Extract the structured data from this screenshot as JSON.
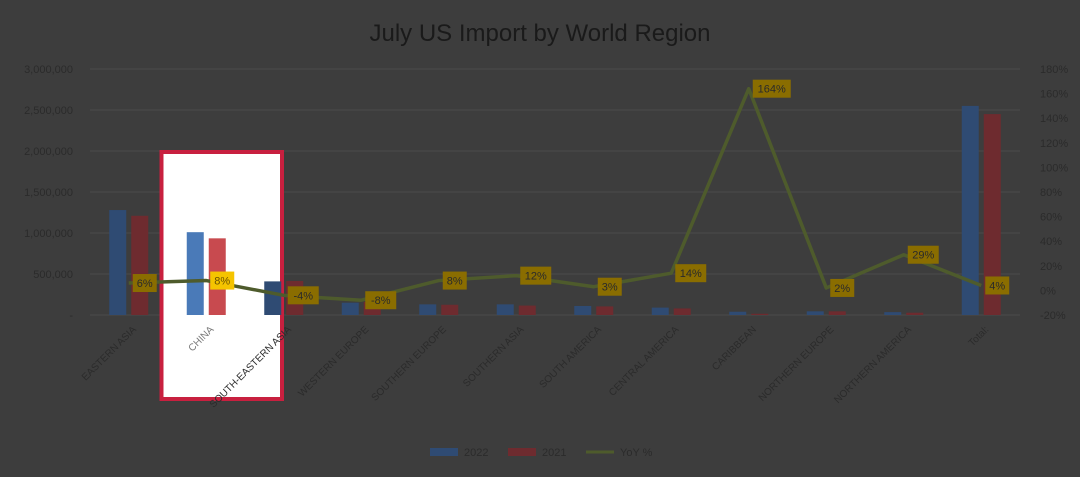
{
  "chart_data": {
    "type": "bar",
    "title": "July US Import by World Region",
    "categories": [
      "EASTERN ASIA",
      "CHINA",
      "SOUTH-EASTERN ASIA",
      "WESTERN EUROPE",
      "SOUTHERN EUROPE",
      "SOUTHERN ASIA",
      "SOUTH AMERICA",
      "CENTRAL AMERICA",
      "CARIBBEAN",
      "NORTHERN EUROPE",
      "NORTHERN AMERICA",
      "Total:"
    ],
    "series": [
      {
        "name": "2022",
        "type": "bar",
        "color": "#2f4b73",
        "values": [
          1280000,
          1010000,
          410000,
          150000,
          130000,
          130000,
          110000,
          90000,
          40000,
          45000,
          35000,
          2550000
        ]
      },
      {
        "name": "2021",
        "type": "bar",
        "color": "#6e2b2f",
        "values": [
          1210000,
          935000,
          415000,
          160000,
          125000,
          115000,
          105000,
          80000,
          15000,
          45000,
          28000,
          2450000
        ]
      },
      {
        "name": "YoY %",
        "type": "line",
        "color": "#4e5b2c",
        "values": [
          6,
          8,
          -4,
          -8,
          8,
          12,
          3,
          14,
          164,
          2,
          29,
          4
        ]
      }
    ],
    "data_labels": [
      "6%",
      "8%",
      "-4%",
      "-8%",
      "8%",
      "12%",
      "3%",
      "14%",
      "164%",
      "2%",
      "29%",
      "4%"
    ],
    "y_left": {
      "ylim": [
        0,
        3000000
      ],
      "ticks": [
        "-",
        "500,000",
        "1,000,000",
        "1,500,000",
        "2,000,000",
        "2,500,000",
        "3,000,000"
      ]
    },
    "y_right": {
      "ylim": [
        -20,
        180
      ],
      "ticks": [
        "-20%",
        "0%",
        "20%",
        "40%",
        "60%",
        "80%",
        "100%",
        "120%",
        "140%",
        "160%",
        "180%"
      ]
    },
    "grid": true,
    "legend": "bottom",
    "highlight_category": "CHINA",
    "highlight_color": "#c8203f",
    "colors": {
      "background": "#3d3d3d",
      "gridline": "#4a4a4a",
      "label_fill": "#8a6d00",
      "label_fill_highlight": "#f5c400",
      "bar_2022_highlight": "#4a7ab8",
      "bar_2021_highlight": "#c84a4f"
    }
  }
}
